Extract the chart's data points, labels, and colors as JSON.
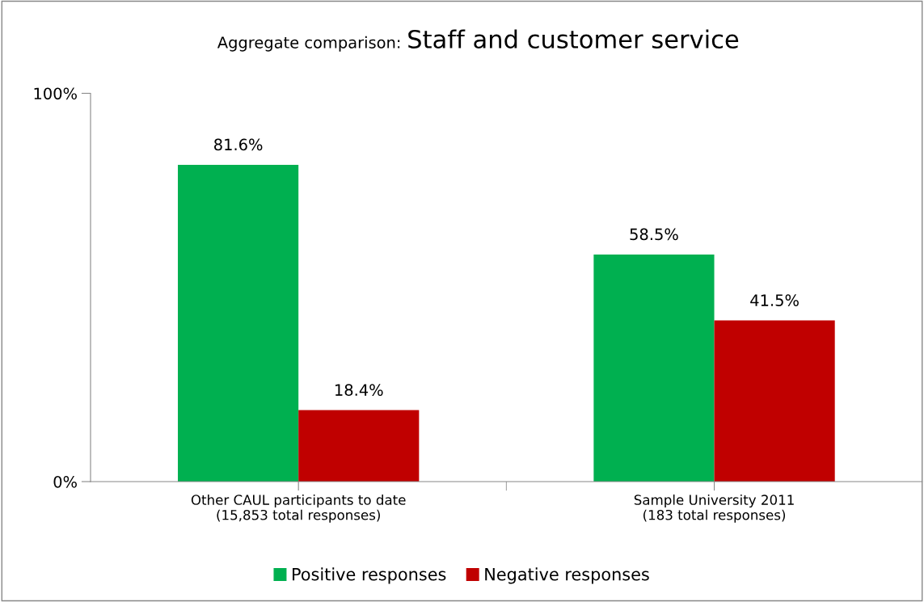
{
  "chart_data": {
    "type": "bar",
    "title": "Aggregate comparison:",
    "subtitle": "Staff and customer service",
    "categories": [
      "Other CAUL participants to date\n(15,853 total responses)",
      "Sample University 2011\n(183 total responses)"
    ],
    "series": [
      {
        "name": "Positive responses",
        "color": "#00b050",
        "values": [
          81.6,
          58.5
        ],
        "value_labels": [
          "81.6%",
          "58.5%"
        ]
      },
      {
        "name": "Negative responses",
        "color": "#c00000",
        "values": [
          18.4,
          41.5
        ],
        "value_labels": [
          "18.4%",
          "41.5%"
        ]
      }
    ],
    "ylim": [
      0,
      100
    ],
    "yticks": [
      {
        "value": 0,
        "label": "0%"
      },
      {
        "value": 100,
        "label": "100%"
      }
    ],
    "grid": false,
    "legend": "bottom"
  }
}
